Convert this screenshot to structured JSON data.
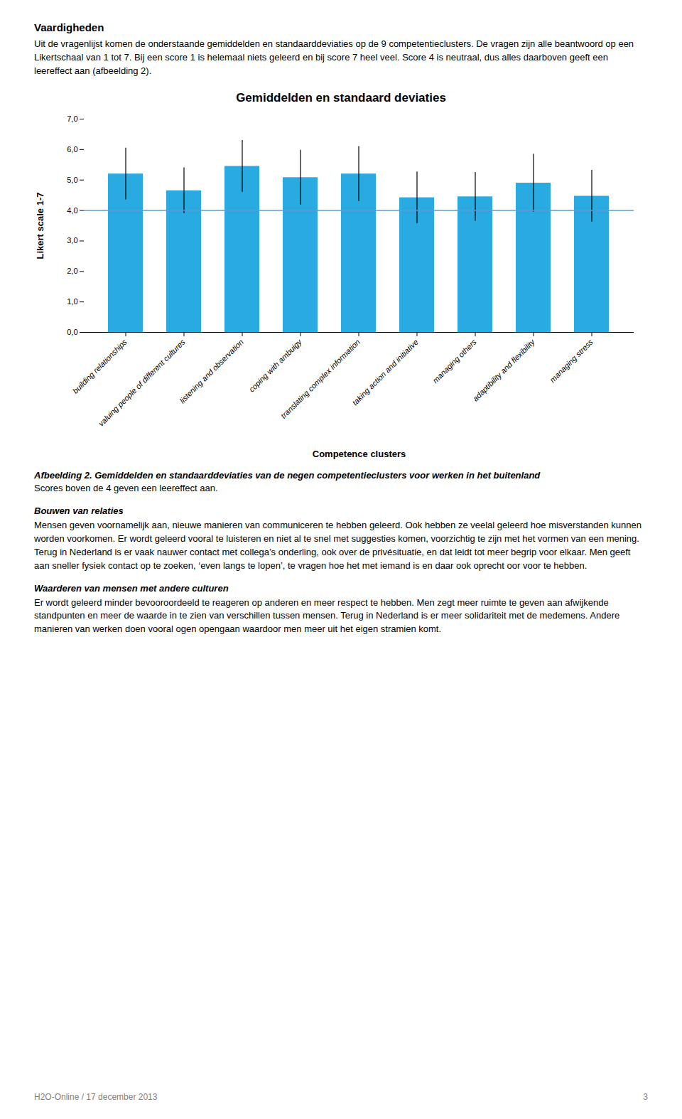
{
  "chart_data": {
    "type": "bar",
    "title": "Gemiddelden en standaard deviaties",
    "xlabel": "Competence clusters",
    "ylabel": "Likert scale 1-7",
    "categories": [
      "building relationships",
      "valuing people of different cultures",
      "listening and observation",
      "coping with ambuigy",
      "translating complex information",
      "taking action and initiative",
      "managing others",
      "adaptibility and flexibility",
      "managing stress"
    ],
    "values": [
      5.2,
      4.65,
      5.45,
      5.08,
      5.2,
      4.42,
      4.45,
      4.9,
      4.47
    ],
    "errors": [
      0.85,
      0.75,
      0.85,
      0.9,
      0.9,
      0.85,
      0.8,
      0.95,
      0.85
    ],
    "color": "#29ABE2",
    "ylim": [
      0,
      7.0
    ],
    "yticks": [
      {
        "value": 0.0,
        "label": "0,0"
      },
      {
        "value": 1.0,
        "label": "1,0"
      },
      {
        "value": 2.0,
        "label": "2,0"
      },
      {
        "value": 3.0,
        "label": "3,0"
      },
      {
        "value": 4.0,
        "label": "4,0"
      },
      {
        "value": 5.0,
        "label": "5,0"
      },
      {
        "value": 6.0,
        "label": "6,0"
      },
      {
        "value": 7.0,
        "label": "7,0"
      }
    ],
    "reference_line": {
      "value": 4.0,
      "color": "#5B9BD5"
    },
    "grid": false
  },
  "text_above": {
    "heading": "Vaardigheden",
    "paragraphs": [
      "Uit de vragenlijst komen de onderstaande gemiddelden en standaarddeviaties op de 9 competentieclusters. De vragen zijn alle beantwoord op een Likertschaal van 1 tot 7. Bij een score 1 is helemaal niets geleerd en bij score 7 heel veel. Score 4 is neutraal, dus alles daarboven geeft een leereffect aan (afbeelding 2)."
    ]
  },
  "caption": {
    "bold": "Afbeelding 2. Gemiddelden en standaarddeviaties van de negen competentieclusters voor werken in het buitenland",
    "normal": "Scores boven de 4 geven een leereffect aan."
  },
  "text_below": [
    {
      "heading": "Bouwen van relaties",
      "paragraph": "Mensen geven voornamelijk aan, nieuwe manieren van communiceren te hebben geleerd. Ook hebben ze veelal geleerd hoe misverstanden kunnen worden voorkomen. Er wordt geleerd vooral te luisteren en niet al te snel met suggesties komen, voorzichtig te zijn met het vormen van een mening. Terug in Nederland is er vaak nauwer contact met collega’s onderling, ook over de privésituatie, en dat leidt tot meer begrip voor elkaar. Men geeft aan sneller fysiek contact op te zoeken, ‘even langs te lopen’, te vragen hoe het met iemand is en daar ook oprecht oor voor te hebben."
    },
    {
      "heading": "Waarderen van mensen met andere culturen",
      "paragraph": "Er wordt geleerd minder bevooroordeeld te reageren op anderen en meer respect te hebben. Men zegt meer ruimte te geven aan afwijkende standpunten en meer de waarde in te zien van verschillen tussen mensen. Terug in Nederland is er meer solidariteit met de medemens. Andere manieren van werken doen vooral ogen opengaan waardoor men meer uit het eigen stramien komt."
    }
  ],
  "footer": {
    "left": "H2O-Online / 17 december 2013",
    "right": "3"
  }
}
